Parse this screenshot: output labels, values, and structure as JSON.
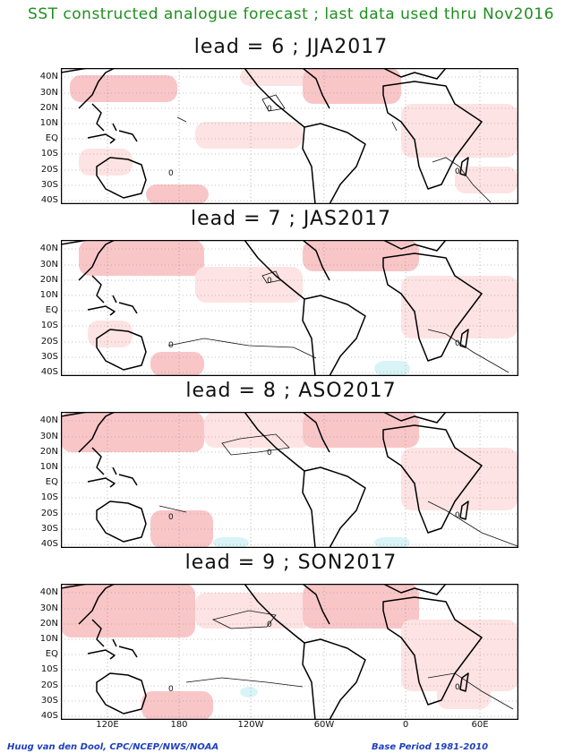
{
  "header": "SST constructed analogue forecast ; last data used thru Nov2016",
  "panels": [
    {
      "title": "lead = 6 ; JJA2017"
    },
    {
      "title": "lead = 7 ; JAS2017"
    },
    {
      "title": "lead = 8 ; ASO2017"
    },
    {
      "title": "lead = 9 ; SON2017"
    }
  ],
  "lat_labels": [
    "40N",
    "30N",
    "20N",
    "10N",
    "EQ",
    "10S",
    "20S",
    "30S",
    "40S"
  ],
  "lon_labels": [
    "120E",
    "180",
    "120W",
    "60W",
    "0",
    "60E"
  ],
  "contour_label": "0",
  "footer_left": "Huug van den Dool, CPC/NCEP/NWS/NOAA",
  "footer_right": "Base Period 1981-2010",
  "colors": {
    "header": "#1f8f1f",
    "footer": "#1f3fbf",
    "warm_light": "#fde3e3",
    "warm": "#f9c6c8",
    "cool": "#d8f4f6"
  }
}
